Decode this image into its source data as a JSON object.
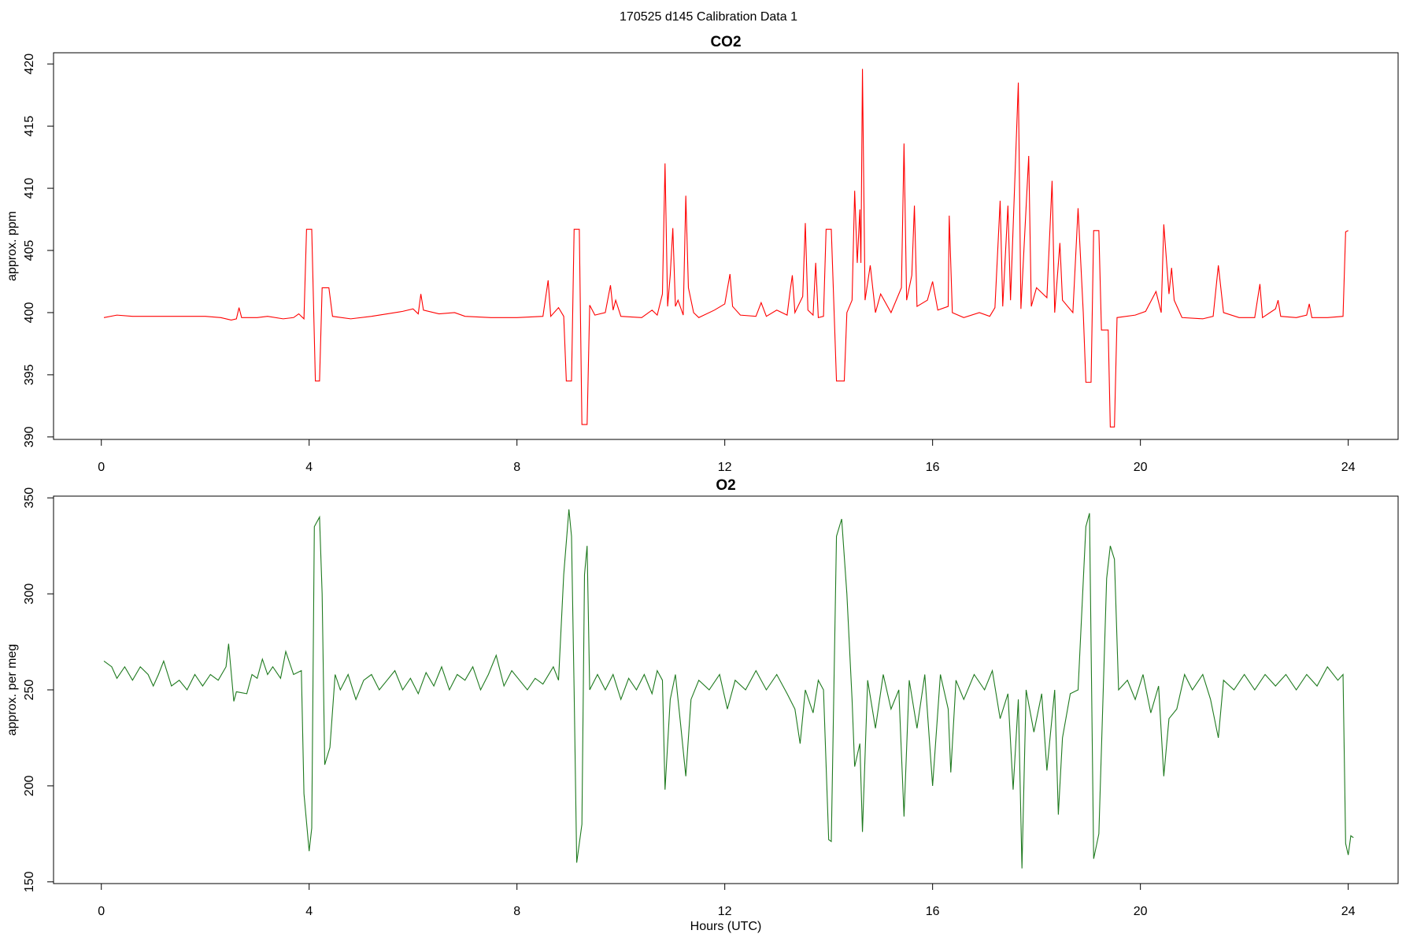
{
  "title": "170525   d145   Calibration Data 1",
  "chart_data": [
    {
      "type": "line",
      "title": "CO2",
      "y_label": "approx. ppm",
      "color": "#ff0000",
      "xlim": [
        -0.92,
        24.96
      ],
      "xticks": [
        0,
        4,
        8,
        12,
        16,
        20,
        24
      ],
      "ylim": [
        389.8,
        420.9
      ],
      "yticks": [
        390,
        395,
        400,
        405,
        410,
        415,
        420
      ],
      "x": [
        0.05,
        0.3,
        0.6,
        1.0,
        1.5,
        2.0,
        2.3,
        2.5,
        2.6,
        2.65,
        2.7,
        3.0,
        3.2,
        3.5,
        3.7,
        3.8,
        3.9,
        3.95,
        4.05,
        4.12,
        4.2,
        4.25,
        4.38,
        4.45,
        4.8,
        5.2,
        5.5,
        5.8,
        6.0,
        6.1,
        6.15,
        6.2,
        6.5,
        6.8,
        7.0,
        7.5,
        8.0,
        8.5,
        8.6,
        8.65,
        8.8,
        8.9,
        8.95,
        9.05,
        9.1,
        9.2,
        9.25,
        9.35,
        9.4,
        9.5,
        9.7,
        9.8,
        9.85,
        9.9,
        10.0,
        10.4,
        10.6,
        10.7,
        10.8,
        10.85,
        10.9,
        10.95,
        11.0,
        11.05,
        11.1,
        11.2,
        11.25,
        11.3,
        11.4,
        11.5,
        11.8,
        12.0,
        12.1,
        12.15,
        12.3,
        12.6,
        12.7,
        12.8,
        13.0,
        13.2,
        13.25,
        13.3,
        13.35,
        13.5,
        13.55,
        13.6,
        13.7,
        13.75,
        13.8,
        13.9,
        13.95,
        14.05,
        14.15,
        14.3,
        14.35,
        14.45,
        14.5,
        14.55,
        14.6,
        14.62,
        14.65,
        14.7,
        14.8,
        14.9,
        15.0,
        15.2,
        15.4,
        15.45,
        15.5,
        15.6,
        15.65,
        15.7,
        15.9,
        16.0,
        16.1,
        16.3,
        16.32,
        16.38,
        16.6,
        16.9,
        17.1,
        17.2,
        17.3,
        17.35,
        17.45,
        17.5,
        17.65,
        17.7,
        17.85,
        17.9,
        18.0,
        18.2,
        18.3,
        18.35,
        18.45,
        18.5,
        18.7,
        18.8,
        18.9,
        18.95,
        19.05,
        19.1,
        19.2,
        19.25,
        19.38,
        19.42,
        19.5,
        19.55,
        19.9,
        20.1,
        20.3,
        20.4,
        20.45,
        20.55,
        20.6,
        20.65,
        20.8,
        21.2,
        21.4,
        21.5,
        21.6,
        21.9,
        22.2,
        22.3,
        22.35,
        22.6,
        22.65,
        22.7,
        23.0,
        23.2,
        23.25,
        23.3,
        23.6,
        23.9,
        23.95,
        24.0
      ],
      "values": [
        399.6,
        399.8,
        399.7,
        399.7,
        399.7,
        399.7,
        399.6,
        399.4,
        399.5,
        400.4,
        399.6,
        399.6,
        399.7,
        399.5,
        399.6,
        399.9,
        399.5,
        406.7,
        406.7,
        394.5,
        394.5,
        402,
        402,
        399.7,
        399.5,
        399.7,
        399.9,
        400.1,
        400.3,
        399.9,
        401.5,
        400.2,
        399.9,
        400.0,
        399.7,
        399.6,
        399.6,
        399.7,
        402.6,
        399.7,
        400.4,
        399.7,
        394.5,
        394.5,
        406.7,
        406.7,
        391,
        391,
        400.6,
        399.8,
        400,
        402.2,
        400.2,
        401,
        399.7,
        399.6,
        400.2,
        399.8,
        401.5,
        412,
        400.5,
        403,
        406.8,
        400.5,
        401,
        399.8,
        409.4,
        402,
        400,
        399.6,
        400.2,
        400.7,
        403.1,
        400.5,
        399.8,
        399.7,
        400.8,
        399.7,
        400.2,
        399.8,
        401.5,
        403,
        400,
        401.3,
        407.2,
        400.2,
        399.8,
        404,
        399.6,
        399.7,
        406.7,
        406.7,
        394.5,
        394.5,
        400,
        401,
        409.8,
        404,
        408.3,
        404,
        419.6,
        401,
        403.8,
        400,
        401.5,
        400,
        402,
        413.6,
        401,
        403,
        408.6,
        400.5,
        401,
        402.5,
        400.2,
        400.5,
        407.8,
        400,
        399.6,
        400,
        399.7,
        400.4,
        409,
        400.5,
        408.6,
        401,
        418.5,
        400.3,
        412.6,
        400.5,
        402,
        401.2,
        410.6,
        400,
        405.6,
        401,
        400,
        408.4,
        400,
        394.4,
        394.4,
        406.6,
        406.6,
        398.6,
        398.6,
        390.8,
        390.8,
        399.6,
        399.8,
        400.1,
        401.7,
        400,
        407.1,
        401.5,
        403.6,
        401,
        399.6,
        399.5,
        399.7,
        403.8,
        400,
        399.6,
        399.6,
        402.3,
        399.6,
        400.3,
        401,
        399.7,
        399.6,
        399.8,
        400.7,
        399.6,
        399.6,
        399.7,
        406.5,
        406.6
      ]
    },
    {
      "type": "line",
      "title": "O2",
      "y_label": "approx. per meg",
      "x_label": "Hours (UTC)",
      "color": "#1f7a1f",
      "xlim": [
        -0.92,
        24.96
      ],
      "xticks": [
        0,
        4,
        8,
        12,
        16,
        20,
        24
      ],
      "ylim": [
        149.1,
        350.9
      ],
      "yticks": [
        150,
        200,
        250,
        300,
        350
      ],
      "x": [
        0.05,
        0.2,
        0.3,
        0.45,
        0.6,
        0.75,
        0.9,
        1.0,
        1.1,
        1.2,
        1.35,
        1.5,
        1.65,
        1.8,
        1.95,
        2.1,
        2.25,
        2.4,
        2.45,
        2.55,
        2.6,
        2.8,
        2.9,
        3.0,
        3.1,
        3.2,
        3.3,
        3.45,
        3.55,
        3.7,
        3.85,
        3.9,
        4.0,
        4.05,
        4.1,
        4.2,
        4.25,
        4.3,
        4.4,
        4.5,
        4.6,
        4.75,
        4.9,
        5.05,
        5.2,
        5.35,
        5.5,
        5.65,
        5.8,
        5.95,
        6.1,
        6.25,
        6.4,
        6.55,
        6.7,
        6.85,
        7.0,
        7.15,
        7.3,
        7.45,
        7.6,
        7.75,
        7.9,
        8.05,
        8.2,
        8.35,
        8.5,
        8.7,
        8.8,
        8.9,
        9.0,
        9.05,
        9.1,
        9.15,
        9.25,
        9.3,
        9.35,
        9.4,
        9.55,
        9.7,
        9.85,
        10.0,
        10.15,
        10.3,
        10.45,
        10.6,
        10.7,
        10.8,
        10.85,
        10.95,
        11.05,
        11.15,
        11.25,
        11.35,
        11.5,
        11.7,
        11.9,
        12.05,
        12.2,
        12.4,
        12.6,
        12.8,
        13.0,
        13.2,
        13.35,
        13.45,
        13.55,
        13.7,
        13.8,
        13.9,
        14.0,
        14.05,
        14.15,
        14.25,
        14.35,
        14.45,
        14.5,
        14.6,
        14.65,
        14.75,
        14.9,
        15.05,
        15.2,
        15.35,
        15.45,
        15.55,
        15.7,
        15.85,
        16.0,
        16.15,
        16.3,
        16.35,
        16.45,
        16.6,
        16.8,
        17.0,
        17.15,
        17.3,
        17.45,
        17.55,
        17.65,
        17.72,
        17.8,
        17.95,
        18.1,
        18.2,
        18.35,
        18.42,
        18.5,
        18.65,
        18.8,
        18.95,
        19.02,
        19.1,
        19.2,
        19.35,
        19.42,
        19.5,
        19.58,
        19.75,
        19.9,
        20.05,
        20.2,
        20.35,
        20.45,
        20.55,
        20.7,
        20.85,
        21.0,
        21.2,
        21.35,
        21.5,
        21.6,
        21.8,
        22.0,
        22.2,
        22.4,
        22.6,
        22.8,
        23.0,
        23.2,
        23.4,
        23.6,
        23.8,
        23.9,
        23.95,
        24.0,
        24.05,
        24.1
      ],
      "values": [
        265,
        262,
        256,
        262,
        255,
        262,
        258,
        252,
        258,
        265,
        252,
        255,
        250,
        258,
        252,
        258,
        255,
        262,
        274,
        244,
        249,
        248,
        258,
        256,
        266,
        258,
        262,
        256,
        270,
        258,
        260,
        196,
        166,
        178,
        335,
        340,
        300,
        211,
        220,
        258,
        250,
        258,
        245,
        255,
        258,
        250,
        255,
        260,
        250,
        256,
        248,
        259,
        252,
        262,
        250,
        258,
        255,
        262,
        250,
        258,
        268,
        252,
        260,
        255,
        250,
        256,
        253,
        262,
        255,
        310,
        344,
        330,
        250,
        160,
        180,
        310,
        325,
        250,
        258,
        250,
        258,
        245,
        256,
        250,
        258,
        248,
        260,
        255,
        198,
        245,
        258,
        232,
        205,
        245,
        255,
        250,
        258,
        240,
        255,
        250,
        260,
        250,
        258,
        248,
        240,
        222,
        250,
        238,
        255,
        250,
        172,
        171,
        330,
        339,
        300,
        245,
        210,
        222,
        176,
        255,
        230,
        258,
        240,
        250,
        184,
        255,
        230,
        258,
        200,
        258,
        240,
        207,
        255,
        245,
        258,
        250,
        260,
        235,
        248,
        198,
        245,
        157,
        250,
        228,
        248,
        208,
        250,
        185,
        225,
        248,
        250,
        335,
        342,
        162,
        175,
        308,
        325,
        318,
        250,
        255,
        245,
        258,
        238,
        252,
        205,
        235,
        240,
        258,
        250,
        258,
        245,
        225,
        255,
        250,
        258,
        250,
        258,
        252,
        258,
        250,
        258,
        252,
        262,
        255,
        258,
        170,
        164,
        174,
        173
      ]
    }
  ]
}
